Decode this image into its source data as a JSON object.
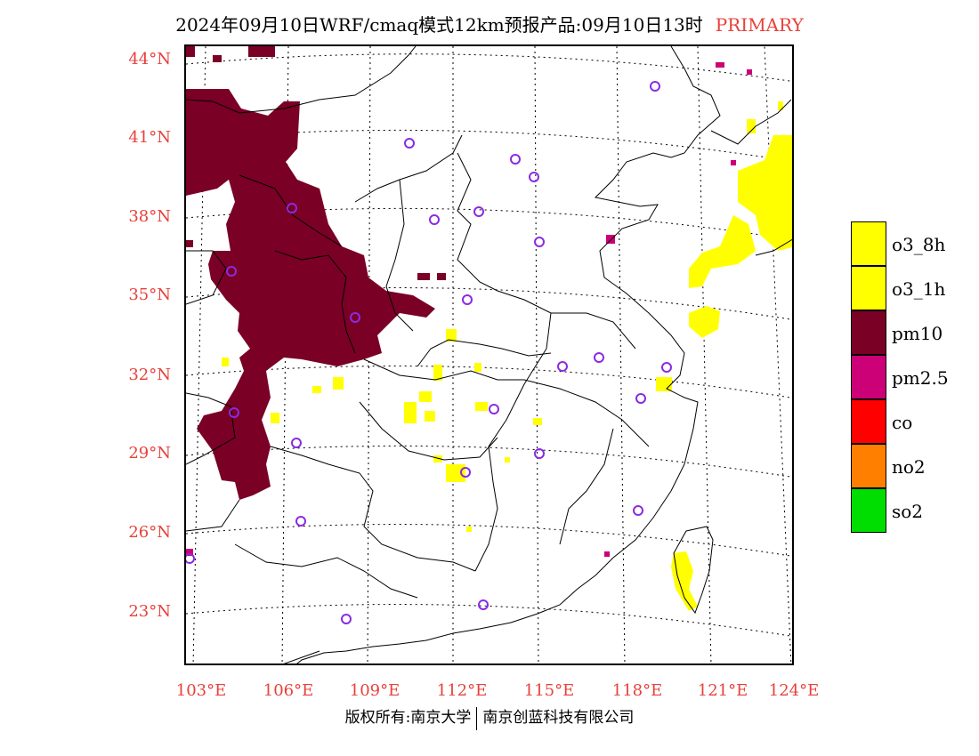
{
  "title": {
    "text": "2024年09月10日WRF/cmaq模式12km预报产品:09月10日13时",
    "primary_label": "PRIMARY",
    "primary_color": "#e8413b"
  },
  "map": {
    "latitudes": [
      "44°N",
      "41°N",
      "38°N",
      "35°N",
      "32°N",
      "29°N",
      "26°N",
      "23°N"
    ],
    "longitudes": [
      "103°E",
      "106°E",
      "109°E",
      "112°E",
      "115°E",
      "118°E",
      "121°E",
      "124°E"
    ],
    "axis_label_color": "#e8413b",
    "stations_count_shown": "monitoring station circles",
    "station_color": "#8a2be2"
  },
  "legend": {
    "items": [
      {
        "label": "o3_8h",
        "color": "#ffff00"
      },
      {
        "label": "o3_1h",
        "color": "#ffff00"
      },
      {
        "label": "pm10",
        "color": "#7a0026"
      },
      {
        "label": "pm2.5",
        "color": "#cc0077"
      },
      {
        "label": "co",
        "color": "#ff0000"
      },
      {
        "label": "no2",
        "color": "#ff7f00"
      },
      {
        "label": "so2",
        "color": "#00dd00"
      }
    ]
  },
  "footer": {
    "left": "版权所有:南京大学",
    "right": "南京创蓝科技有限公司"
  }
}
